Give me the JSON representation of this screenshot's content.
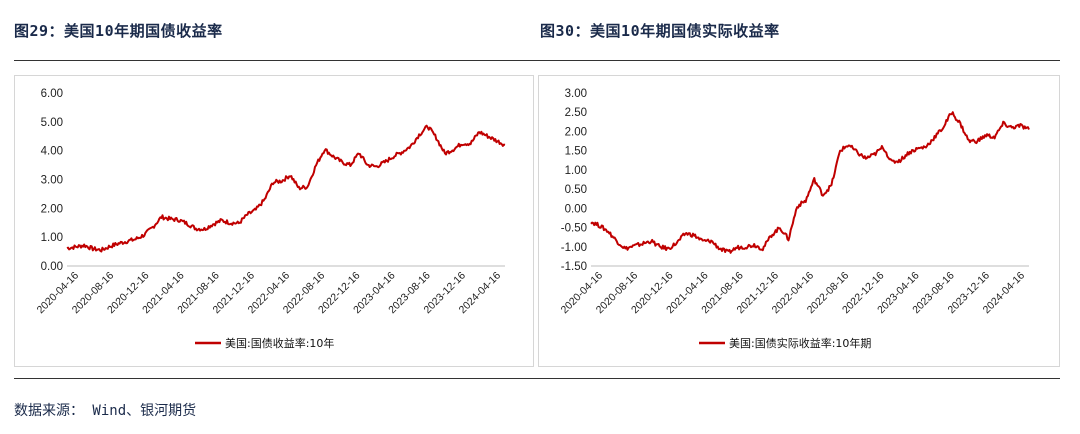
{
  "titles": {
    "left": "图29：美国10年期国债收益率",
    "right": "图30：美国10年期国债实际收益率"
  },
  "source": "数据来源： Wind、银河期货",
  "chart_data": [
    {
      "type": "line",
      "title": "",
      "legend": "美国:国债收益率:10年",
      "color": "#c00000",
      "ylim": [
        0,
        6
      ],
      "yticks": [
        "0.00",
        "1.00",
        "2.00",
        "3.00",
        "4.00",
        "5.00",
        "6.00"
      ],
      "xticks": [
        "2020-04-16",
        "2020-08-16",
        "2020-12-16",
        "2021-04-16",
        "2021-08-16",
        "2021-12-16",
        "2022-04-16",
        "2022-08-16",
        "2022-12-16",
        "2023-04-16",
        "2023-08-16",
        "2023-12-16",
        "2024-04-16"
      ],
      "x": [
        "2020-04",
        "2020-05",
        "2020-06",
        "2020-07",
        "2020-08",
        "2020-09",
        "2020-10",
        "2020-11",
        "2020-12",
        "2021-01",
        "2021-02",
        "2021-03",
        "2021-04",
        "2021-05",
        "2021-06",
        "2021-07",
        "2021-08",
        "2021-09",
        "2021-10",
        "2021-11",
        "2021-12",
        "2022-01",
        "2022-02",
        "2022-03",
        "2022-04",
        "2022-05",
        "2022-06",
        "2022-07",
        "2022-08",
        "2022-09",
        "2022-10",
        "2022-11",
        "2022-12",
        "2023-01",
        "2023-02",
        "2023-03",
        "2023-04",
        "2023-05",
        "2023-06",
        "2023-07",
        "2023-08",
        "2023-09",
        "2023-10",
        "2023-11",
        "2023-12",
        "2024-01",
        "2024-02",
        "2024-03",
        "2024-04",
        "2024-05",
        "2024-06",
        "2024-07"
      ],
      "values": [
        0.62,
        0.66,
        0.72,
        0.6,
        0.55,
        0.68,
        0.78,
        0.86,
        0.93,
        1.08,
        1.35,
        1.7,
        1.63,
        1.6,
        1.47,
        1.3,
        1.28,
        1.45,
        1.58,
        1.5,
        1.48,
        1.78,
        1.95,
        2.3,
        2.9,
        2.95,
        3.15,
        2.7,
        2.75,
        3.5,
        4.05,
        3.8,
        3.6,
        3.5,
        3.92,
        3.5,
        3.45,
        3.6,
        3.8,
        3.95,
        4.15,
        4.55,
        4.85,
        4.45,
        3.9,
        4.05,
        4.25,
        4.25,
        4.65,
        4.5,
        4.35,
        4.2
      ]
    },
    {
      "type": "line",
      "title": "",
      "legend": "美国:国债实际收益率:10年期",
      "color": "#c00000",
      "ylim": [
        -1.5,
        3
      ],
      "yticks": [
        "-1.50",
        "-1.00",
        "-0.50",
        "0.00",
        "0.50",
        "1.00",
        "1.50",
        "2.00",
        "2.50",
        "3.00"
      ],
      "xticks": [
        "2020-04-16",
        "2020-08-16",
        "2020-12-16",
        "2021-04-16",
        "2021-08-16",
        "2021-12-16",
        "2022-04-16",
        "2022-08-16",
        "2022-12-16",
        "2023-04-16",
        "2023-08-16",
        "2023-12-16",
        "2024-04-16"
      ],
      "x": [
        "2020-04",
        "2020-05",
        "2020-06",
        "2020-07",
        "2020-08",
        "2020-09",
        "2020-10",
        "2020-11",
        "2020-12",
        "2021-01",
        "2021-02",
        "2021-03",
        "2021-04",
        "2021-05",
        "2021-06",
        "2021-07",
        "2021-08",
        "2021-09",
        "2021-10",
        "2021-11",
        "2021-12",
        "2022-01",
        "2022-02",
        "2022-03",
        "2022-04",
        "2022-05",
        "2022-06",
        "2022-07",
        "2022-08",
        "2022-09",
        "2022-10",
        "2022-11",
        "2022-12",
        "2023-01",
        "2023-02",
        "2023-03",
        "2023-04",
        "2023-05",
        "2023-06",
        "2023-07",
        "2023-08",
        "2023-09",
        "2023-10",
        "2023-11",
        "2023-12",
        "2024-01",
        "2024-02",
        "2024-03",
        "2024-04",
        "2024-05",
        "2024-06",
        "2024-07"
      ],
      "values": [
        -0.35,
        -0.45,
        -0.6,
        -0.85,
        -1.05,
        -0.98,
        -0.92,
        -0.85,
        -1.0,
        -1.05,
        -0.9,
        -0.65,
        -0.7,
        -0.85,
        -0.85,
        -1.05,
        -1.15,
        -1.02,
        -1.0,
        -0.95,
        -1.05,
        -0.7,
        -0.5,
        -0.8,
        0.05,
        0.2,
        0.75,
        0.35,
        0.6,
        1.5,
        1.65,
        1.45,
        1.3,
        1.4,
        1.6,
        1.2,
        1.25,
        1.45,
        1.55,
        1.6,
        1.85,
        2.1,
        2.5,
        2.2,
        1.75,
        1.75,
        1.9,
        1.85,
        2.2,
        2.1,
        2.15,
        2.05
      ]
    }
  ]
}
